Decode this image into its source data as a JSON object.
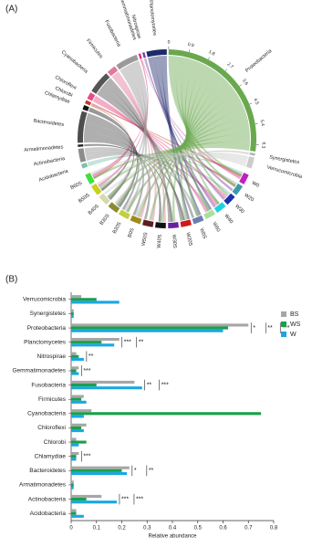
{
  "chart_data": [
    {
      "type": "chord",
      "panel_label": "(A)",
      "groups": [
        {
          "name": "Acidobacteria",
          "color": "#7fbfb0",
          "value": 0.2
        },
        {
          "name": "Actinobacteria",
          "color": "#8c8c8c",
          "value": 0.6
        },
        {
          "name": "Armatimonadetes",
          "color": "#222222",
          "value": 0.1
        },
        {
          "name": "Bacteroidetes",
          "color": "#4d4d4d",
          "value": 1.4
        },
        {
          "name": "Chlamydiae",
          "color": "#111111",
          "value": 0.2
        },
        {
          "name": "Chlorobi",
          "color": "#c0392b",
          "value": 0.15
        },
        {
          "name": "Chloroflexi",
          "color": "#e84a8a",
          "value": 0.3
        },
        {
          "name": "Cyanobacteria",
          "color": "#555555",
          "value": 1.0
        },
        {
          "name": "Firmicutes",
          "color": "#e07a9a",
          "value": 0.4
        },
        {
          "name": "Fusobacteria",
          "color": "#9a9a9a",
          "value": 1.0
        },
        {
          "name": "Gemmatimonadetes",
          "color": "#d63384",
          "value": 0.1
        },
        {
          "name": "Nitrospirae",
          "color": "#7b3fa0",
          "value": 0.1
        },
        {
          "name": "Planctomycetes",
          "color": "#1f2a6b",
          "value": 0.9
        },
        {
          "name": "Proteobacteria",
          "color": "#6aa84f",
          "value": 6.6
        },
        {
          "name": "Synergistetes",
          "color": "#b0b0b0",
          "value": 0.1
        },
        {
          "name": "Verrucomicrobia",
          "color": "#cccccc",
          "value": 0.5
        }
      ],
      "samples": [
        {
          "name": "W0",
          "color": "#c020c0",
          "value": 1
        },
        {
          "name": "W20",
          "color": "#3a9ab0",
          "value": 1
        },
        {
          "name": "W30",
          "color": "#1c2fb0",
          "value": 1
        },
        {
          "name": "W40",
          "color": "#20d0e0",
          "value": 1
        },
        {
          "name": "W60",
          "color": "#a8e0a0",
          "value": 1
        },
        {
          "name": "W0S",
          "color": "#6a7fb0",
          "value": 1
        },
        {
          "name": "W20S",
          "color": "#d01818",
          "value": 1
        },
        {
          "name": "W30S",
          "color": "#6a1fa0",
          "value": 1
        },
        {
          "name": "W40S",
          "color": "#111111",
          "value": 1
        },
        {
          "name": "W50S",
          "color": "#5a1f1f",
          "value": 1
        },
        {
          "name": "B0S",
          "color": "#a08a20",
          "value": 1
        },
        {
          "name": "B20S",
          "color": "#c0d040",
          "value": 1
        },
        {
          "name": "B30S",
          "color": "#8a8a30",
          "value": 1
        },
        {
          "name": "B40S",
          "color": "#d8d8b0",
          "value": 1
        },
        {
          "name": "B50S",
          "color": "#c8d020",
          "value": 1
        },
        {
          "name": "B60S",
          "color": "#40e040",
          "value": 1
        }
      ],
      "scale_ticks": [
        0,
        0.9,
        1.8,
        2.7,
        3.6,
        4.5,
        5.4,
        6.3
      ]
    },
    {
      "type": "bar",
      "orientation": "horizontal",
      "panel_label": "(B)",
      "x_label": "Relative abundance",
      "categories": [
        "Verrucomicrobia",
        "Synergistetes",
        "Proteobacteria",
        "Planctomycetes",
        "Nitrospirae",
        "Gemmatimonadetes",
        "Fusobacteria",
        "Firmicutes",
        "Cyanobacteria",
        "Chloroflexi",
        "Chlorobi",
        "Chlamydiae",
        "Bacteroidetes",
        "Armatimonadetes",
        "Actinobacteria",
        "Acidobacteria"
      ],
      "series": [
        {
          "name": "BS",
          "color": "#a6a6a6",
          "values": [
            0.04,
            0.01,
            0.7,
            0.19,
            0.02,
            0.03,
            0.25,
            0.05,
            0.08,
            0.06,
            0.02,
            0.03,
            0.23,
            0.01,
            0.12,
            0.02
          ]
        },
        {
          "name": "WS",
          "color": "#1aa04a",
          "values": [
            0.1,
            0.01,
            0.62,
            0.12,
            0.03,
            0.02,
            0.1,
            0.04,
            0.75,
            0.04,
            0.06,
            0.02,
            0.2,
            0.01,
            0.06,
            0.02
          ]
        },
        {
          "name": "W",
          "color": "#1aa8e0",
          "values": [
            0.19,
            0.01,
            0.6,
            0.17,
            0.05,
            0.03,
            0.28,
            0.06,
            0.05,
            0.05,
            0.03,
            0.02,
            0.22,
            0.01,
            0.18,
            0.05
          ]
        }
      ],
      "significance": [
        [],
        [],
        [
          "*",
          "**",
          "***"
        ],
        [
          "***",
          "**"
        ],
        [
          "**"
        ],
        [
          "***"
        ],
        [
          "**",
          "***"
        ],
        [],
        [],
        [],
        [],
        [
          "***"
        ],
        [
          "*",
          "**"
        ],
        [],
        [
          "***",
          "***"
        ],
        []
      ],
      "xlim": [
        0,
        0.8
      ],
      "xticks": [
        0,
        0.1,
        0.2,
        0.3,
        0.4,
        0.5,
        0.6,
        0.7,
        0.8
      ]
    }
  ]
}
